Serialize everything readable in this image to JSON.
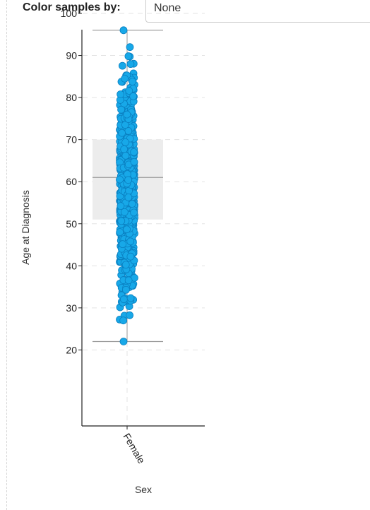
{
  "controls": {
    "color_label": "Color samples by:",
    "color_value": "None"
  },
  "colors": {
    "point_fill": "#17a8e8",
    "point_stroke": "#0a7fc0",
    "box_fill": "#ececec",
    "whisker": "#999999",
    "axis": "#222222",
    "grid": "#e3e3e3"
  },
  "chart_data": {
    "type": "scatter",
    "subtype": "box-plot with jittered points",
    "title": "",
    "xlabel": "Sex",
    "ylabel": "Age at Diagnosis",
    "categories": [
      "Female"
    ],
    "ylim": [
      12,
      106
    ],
    "yticks": [
      20,
      30,
      40,
      50,
      60,
      70,
      80,
      90,
      100
    ],
    "grid": true,
    "box": {
      "category": "Female",
      "whisker_low": 22,
      "q1": 51,
      "median": 61,
      "q3": 70,
      "whisker_high": 96
    },
    "outliers": [
      {
        "x": "Female",
        "y": 96
      },
      {
        "x": "Female",
        "y": 92
      },
      {
        "x": "Female",
        "y": 22
      }
    ],
    "points_summary": {
      "category": "Female",
      "y_min": 26.5,
      "y_max": 90,
      "density_mode": 62
    }
  }
}
